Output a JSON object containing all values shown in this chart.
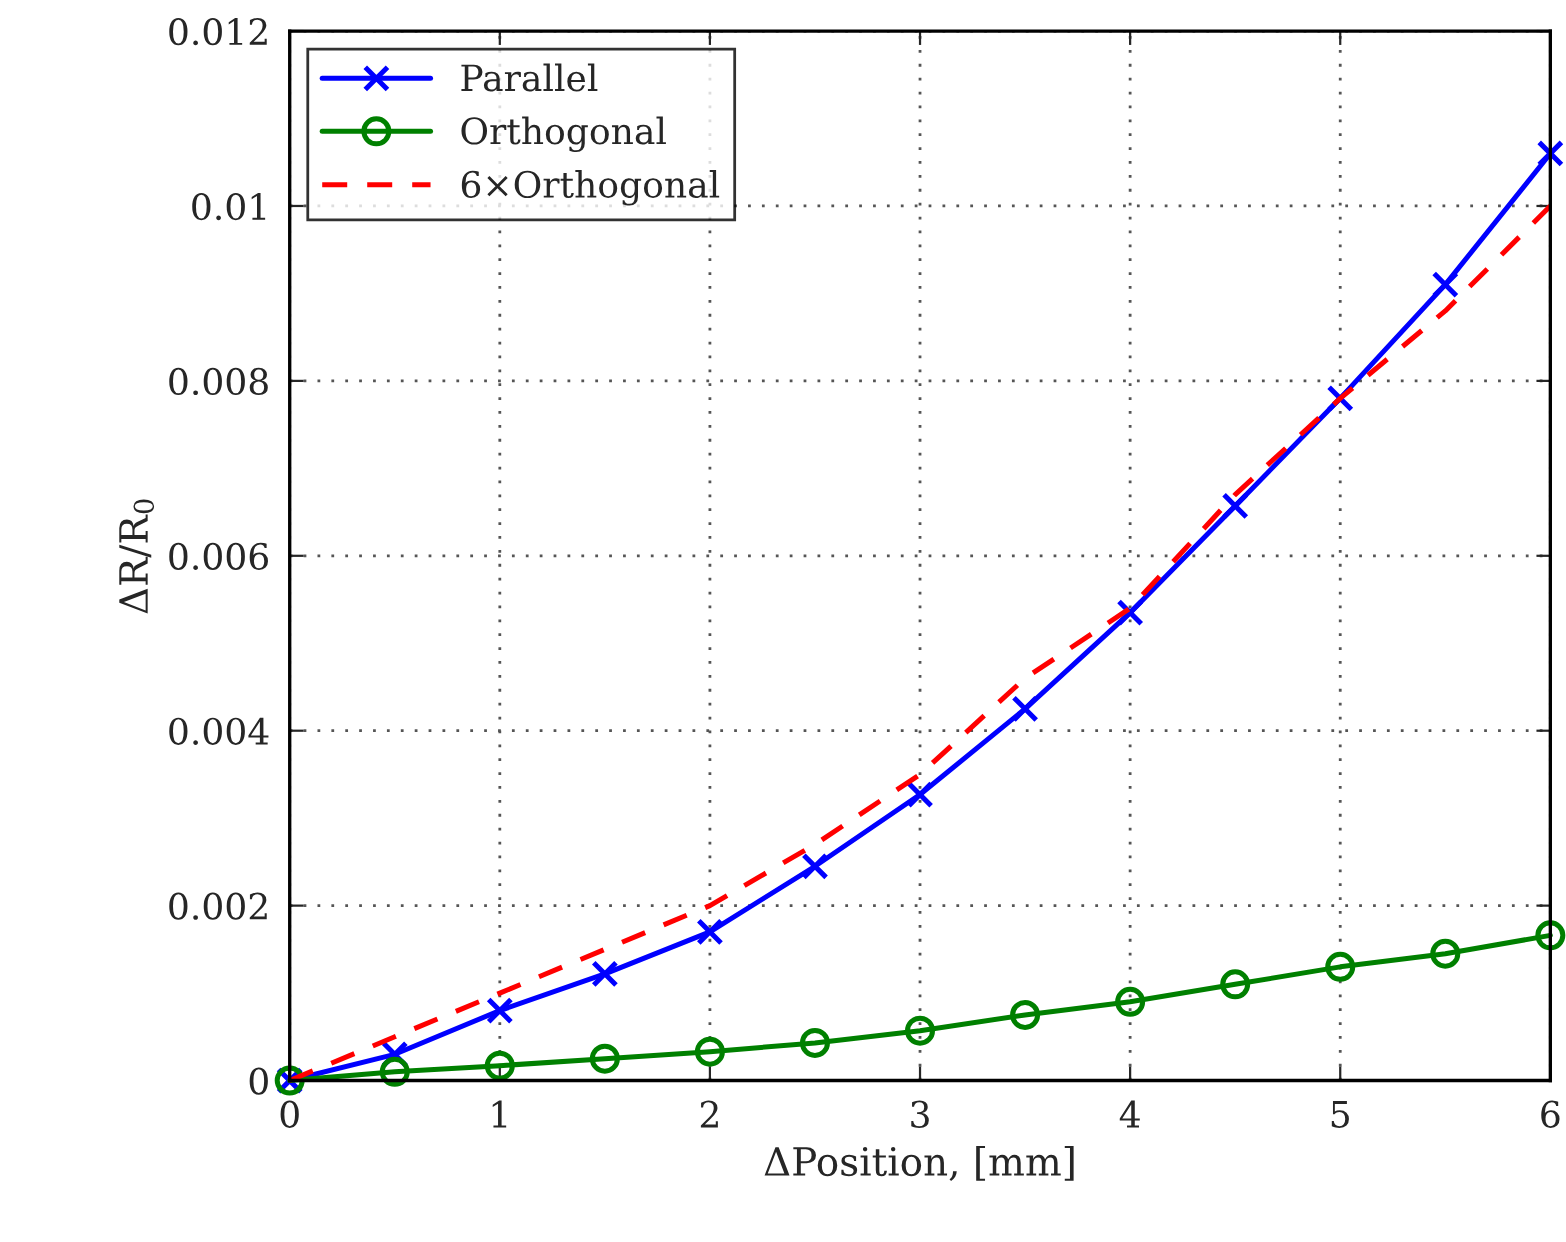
{
  "chart_data": {
    "type": "line",
    "xlabel": "ΔPosition, [mm]",
    "ylabel": "ΔR/R$_{0}$",
    "x": [
      0,
      0.5,
      1,
      1.5,
      2,
      2.5,
      3,
      3.5,
      4,
      4.5,
      5,
      5.5,
      6
    ],
    "series": [
      {
        "name": "Parallel",
        "color": "#0000ff",
        "marker": "cross",
        "line_style": "solid",
        "values": [
          0,
          0.0003,
          0.0008,
          0.00122,
          0.0017,
          0.00245,
          0.00327,
          0.00425,
          0.00535,
          0.00657,
          0.0078,
          0.0091,
          0.0106
        ]
      },
      {
        "name": "Orthogonal",
        "color": "#008000",
        "marker": "circle",
        "line_style": "solid",
        "values": [
          0,
          0.0001,
          0.00017,
          0.00025,
          0.00033,
          0.00043,
          0.00057,
          0.00075,
          0.0009,
          0.0011,
          0.0013,
          0.00145,
          0.00166
        ]
      },
      {
        "name": "6×Orthogonal",
        "color": "#ff0000",
        "marker": "none",
        "line_style": "dashed",
        "values": [
          0,
          0.0005,
          0.001,
          0.0015,
          0.002,
          0.0027,
          0.0035,
          0.0046,
          0.0054,
          0.0067,
          0.0078,
          0.0088,
          0.01
        ]
      }
    ],
    "xlim": [
      0,
      6
    ],
    "xticks": [
      0,
      1,
      2,
      3,
      4,
      5,
      6
    ],
    "ylim": [
      0,
      0.012
    ],
    "yticks": [
      0,
      0.002,
      0.004,
      0.006,
      0.008,
      {
        "value": 0.01,
        "label": "0.01"
      },
      0.012
    ],
    "grid": true,
    "legend": "top left"
  }
}
